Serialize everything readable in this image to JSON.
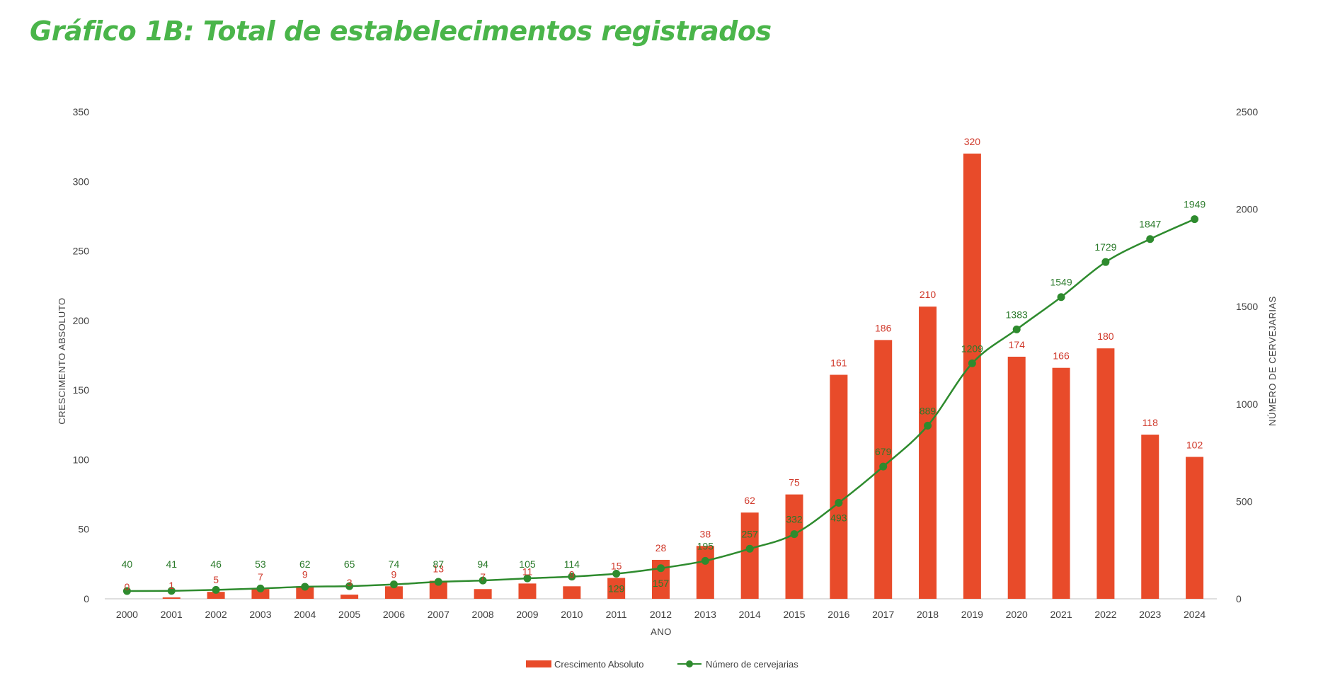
{
  "title": "Gráfico 1B: Total de estabelecimentos registrados",
  "colors": {
    "title": "#4ab54a",
    "bar": "#e84b2a",
    "bar_label": "#d0392b",
    "line": "#2e8b2e",
    "line_label": "#2a7a2a",
    "axis": "#bfbfbf"
  },
  "chart_data": {
    "type": "bar",
    "title": "",
    "xlabel": "ANO",
    "ylabel": "CRESCIMENTO ABSOLUTO",
    "y2label": "NÚMERO DE CERVEJARIAS",
    "ylim": [
      0,
      350
    ],
    "y2lim": [
      0,
      2500
    ],
    "yticks": [
      "0",
      "50",
      "100",
      "150",
      "200",
      "250",
      "300",
      "350"
    ],
    "y2ticks": [
      "0",
      "500",
      "1000",
      "1500",
      "2000",
      "2500"
    ],
    "categories": [
      "2000",
      "2001",
      "2002",
      "2003",
      "2004",
      "2005",
      "2006",
      "2007",
      "2008",
      "2009",
      "2010",
      "2011",
      "2012",
      "2013",
      "2014",
      "2015",
      "2016",
      "2017",
      "2018",
      "2019",
      "2020",
      "2021",
      "2022",
      "2023",
      "2024"
    ],
    "series": [
      {
        "name": "Crescimento Absoluto",
        "type": "bar",
        "axis": "left",
        "values": [
          0,
          1,
          5,
          7,
          9,
          3,
          9,
          13,
          7,
          11,
          9,
          15,
          28,
          38,
          62,
          75,
          161,
          186,
          210,
          320,
          174,
          166,
          180,
          118,
          102
        ],
        "labels": [
          "0",
          "1",
          "5",
          "7",
          "9",
          "3",
          "9",
          "13",
          "7",
          "11",
          "9",
          "15",
          "28",
          "38",
          "62",
          "75",
          "161",
          "186",
          "210",
          "320",
          "174",
          "166",
          "180",
          "118",
          "102"
        ]
      },
      {
        "name": "Número de cervejarias",
        "type": "line",
        "axis": "right",
        "values": [
          40,
          41,
          46,
          53,
          62,
          65,
          74,
          87,
          94,
          105,
          114,
          129,
          157,
          195,
          257,
          332,
          493,
          679,
          889,
          1209,
          1383,
          1549,
          1729,
          1847,
          1949
        ],
        "labels": [
          "40",
          "41",
          "46",
          "53",
          "62",
          "65",
          "74",
          "87",
          "94",
          "105",
          "114",
          "129",
          "157",
          "195",
          "257",
          "332",
          "493",
          "679",
          "889",
          "1209",
          "1383",
          "1549",
          "1729",
          "1847",
          "1949"
        ]
      }
    ],
    "legend": "bottom-center"
  }
}
